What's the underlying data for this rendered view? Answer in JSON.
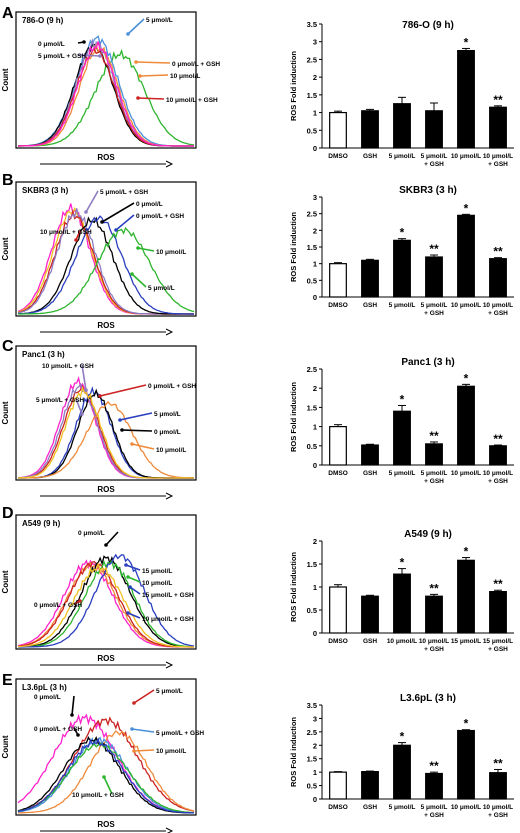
{
  "panels": [
    {
      "letter": "A",
      "flow": {
        "title": "786-O (9 h)",
        "xlabel": "ROS",
        "ylabel": "Count",
        "labels": [
          {
            "text": "5 μmol/L",
            "color": "#4a90d9"
          },
          {
            "text": "0 μmol/L",
            "color": "#000000"
          },
          {
            "text": "5 μmol/L + GSH",
            "color": "#8e7cc3"
          },
          {
            "text": "0 μmol/L + GSH",
            "color": "#f08a3a"
          },
          {
            "text": "10 μmol/L",
            "color": "#f08a3a"
          },
          {
            "text": "10 μmol/L + GSH",
            "color": "#cc2222"
          }
        ]
      },
      "bar": {
        "title": "786-O (9 h)",
        "ylabel": "ROS Fold induction",
        "categories": [
          [
            "DMSO"
          ],
          [
            "GSH"
          ],
          [
            "5 μmol/L"
          ],
          [
            "5 μmol/L",
            "+ GSH"
          ],
          [
            "10 μmol/L"
          ],
          [
            "10 μmol/L",
            "+ GSH"
          ]
        ],
        "values": [
          1.0,
          1.05,
          1.25,
          1.05,
          2.75,
          1.15
        ],
        "errors": [
          0.04,
          0.04,
          0.18,
          0.22,
          0.06,
          0.04
        ],
        "ylim": [
          0,
          3.5
        ],
        "yticks": [
          "0",
          "0.5",
          "1",
          "1.5",
          "2",
          "2.5",
          "3",
          "3.5"
        ],
        "marks": [
          "",
          "",
          "",
          "",
          "*",
          "**"
        ]
      }
    },
    {
      "letter": "B",
      "flow": {
        "title": "SKBR3 (3 h)",
        "xlabel": "ROS",
        "ylabel": "Count",
        "labels": [
          {
            "text": "5 μmol/L + GSH",
            "color": "#8e7cc3"
          },
          {
            "text": "0 μmol/L",
            "color": "#000000"
          },
          {
            "text": "0 μmol/L + GSH",
            "color": "#2a3fbf"
          },
          {
            "text": "10 μmol/L + GSH",
            "color": "#cc2222"
          },
          {
            "text": "10 μmol/L",
            "color": "#2db52d"
          },
          {
            "text": "5 μmol/L",
            "color": "#2db52d"
          }
        ]
      },
      "bar": {
        "title": "SKBR3 (3 h)",
        "ylabel": "ROS Fold induction",
        "categories": [
          [
            "DMSO"
          ],
          [
            "GSH"
          ],
          [
            "5 μmol/L"
          ],
          [
            "5 μmol/L",
            "+ GSH"
          ],
          [
            "10 μmol/L"
          ],
          [
            "10 μmol/L",
            "+ GSH"
          ]
        ],
        "values": [
          1.0,
          1.1,
          1.7,
          1.2,
          2.45,
          1.15
        ],
        "errors": [
          0.03,
          0.03,
          0.05,
          0.06,
          0.03,
          0.03
        ],
        "ylim": [
          0,
          3
        ],
        "yticks": [
          "0",
          "0.5",
          "1",
          "1.5",
          "2",
          "2.5",
          "3"
        ],
        "marks": [
          "",
          "",
          "*",
          "**",
          "*",
          "**"
        ]
      }
    },
    {
      "letter": "C",
      "flow": {
        "title": "Panc1 (3 h)",
        "xlabel": "ROS",
        "ylabel": "Count",
        "labels": [
          {
            "text": "10 μmol/L + GSH",
            "color": "#8e7cc3"
          },
          {
            "text": "0 μmol/L + GSH",
            "color": "#cc2222"
          },
          {
            "text": "5 μmol/L + GSH",
            "color": "#8e7cc3"
          },
          {
            "text": "5 μmol/L",
            "color": "#2a3fbf"
          },
          {
            "text": "0 μmol/L",
            "color": "#000000"
          },
          {
            "text": "10 μmol/L",
            "color": "#f08a3a"
          }
        ]
      },
      "bar": {
        "title": "Panc1 (3 h)",
        "ylabel": "ROS Fold induction",
        "categories": [
          [
            "DMSO"
          ],
          [
            "GSH"
          ],
          [
            "5 μmol/L"
          ],
          [
            "5 μmol/L",
            "+ GSH"
          ],
          [
            "10 μmol/L"
          ],
          [
            "10 μmol/L",
            "+ GSH"
          ]
        ],
        "values": [
          1.0,
          0.52,
          1.4,
          0.55,
          2.05,
          0.5
        ],
        "errors": [
          0.05,
          0.02,
          0.15,
          0.05,
          0.05,
          0.02
        ],
        "ylim": [
          0,
          2.5
        ],
        "yticks": [
          "0",
          "0.5",
          "1",
          "1.5",
          "2",
          "2.5"
        ],
        "marks": [
          "",
          "",
          "*",
          "**",
          "*",
          "**"
        ]
      }
    },
    {
      "letter": "D",
      "flow": {
        "title": "A549 (9 h)",
        "xlabel": "ROS",
        "ylabel": "Count",
        "labels": [
          {
            "text": "0 μmol/L",
            "color": "#000000"
          },
          {
            "text": "15 μmol/L",
            "color": "#2a3fbf"
          },
          {
            "text": "10 μmol/L",
            "color": "#2db52d"
          },
          {
            "text": "15 μmol/L + GSH",
            "color": "#2a3fbf"
          },
          {
            "text": "0 μmol/L + GSH",
            "color": "#cc2222"
          },
          {
            "text": "10 μmol/L + GSH",
            "color": "#2a3fbf"
          }
        ]
      },
      "bar": {
        "title": "A549 (9 h)",
        "ylabel": "ROS Fold induction",
        "categories": [
          [
            "DMSO"
          ],
          [
            "GSH"
          ],
          [
            "10 μmol/L"
          ],
          [
            "10 μmol/L",
            "+ GSH"
          ],
          [
            "15 μmol/L"
          ],
          [
            "15 μmol/L",
            "+ GSH"
          ]
        ],
        "values": [
          1.0,
          0.8,
          1.28,
          0.8,
          1.58,
          0.9
        ],
        "errors": [
          0.05,
          0.02,
          0.12,
          0.04,
          0.06,
          0.03
        ],
        "ylim": [
          0,
          2
        ],
        "yticks": [
          "0",
          "0.5",
          "1",
          "1.5",
          "2"
        ],
        "marks": [
          "",
          "",
          "*",
          "**",
          "*",
          "**"
        ]
      }
    },
    {
      "letter": "E",
      "flow": {
        "title": "L3.6pL (3 h)",
        "xlabel": "ROS",
        "ylabel": "Count",
        "labels": [
          {
            "text": "0 μmol/L",
            "color": "#000000"
          },
          {
            "text": "5 μmol/L",
            "color": "#cc2222"
          },
          {
            "text": "0 μmol/L + GSH",
            "color": "#000000"
          },
          {
            "text": "5 μmol/L + GSH",
            "color": "#4a90d9"
          },
          {
            "text": "10 μmol/L",
            "color": "#f08a3a"
          },
          {
            "text": "10 μmol/L + GSH",
            "color": "#2db52d"
          }
        ]
      },
      "bar": {
        "title": "L3.6pL (3 h)",
        "ylabel": "ROS Fold induction",
        "categories": [
          [
            "DMSO"
          ],
          [
            "GSH"
          ],
          [
            "5 μmol/L"
          ],
          [
            "5 μmol/L",
            "+ GSH"
          ],
          [
            "10 μmol/L"
          ],
          [
            "10 μmol/L",
            "+ GSH"
          ]
        ],
        "values": [
          1.0,
          1.02,
          2.0,
          0.95,
          2.55,
          0.98
        ],
        "errors": [
          0.02,
          0.02,
          0.1,
          0.05,
          0.03,
          0.12
        ],
        "ylim": [
          0,
          3.5
        ],
        "yticks": [
          "0",
          "0.5",
          "1",
          "1.5",
          "2",
          "2.5",
          "3",
          "3.5"
        ],
        "marks": [
          "",
          "",
          "*",
          "**",
          "*",
          "**"
        ]
      }
    }
  ],
  "chart_data": [
    {
      "type": "bar",
      "title": "786-O (9 h)",
      "ylabel": "ROS Fold induction",
      "categories": [
        "DMSO",
        "GSH",
        "5 μmol/L",
        "5 μmol/L + GSH",
        "10 μmol/L",
        "10 μmol/L + GSH"
      ],
      "values": [
        1.0,
        1.05,
        1.25,
        1.05,
        2.75,
        1.15
      ],
      "ylim": [
        0,
        3.5
      ]
    },
    {
      "type": "bar",
      "title": "SKBR3 (3 h)",
      "ylabel": "ROS Fold induction",
      "categories": [
        "DMSO",
        "GSH",
        "5 μmol/L",
        "5 μmol/L + GSH",
        "10 μmol/L",
        "10 μmol/L + GSH"
      ],
      "values": [
        1.0,
        1.1,
        1.7,
        1.2,
        2.45,
        1.15
      ],
      "ylim": [
        0,
        3
      ]
    },
    {
      "type": "bar",
      "title": "Panc1 (3 h)",
      "ylabel": "ROS Fold induction",
      "categories": [
        "DMSO",
        "GSH",
        "5 μmol/L",
        "5 μmol/L + GSH",
        "10 μmol/L",
        "10 μmol/L + GSH"
      ],
      "values": [
        1.0,
        0.52,
        1.4,
        0.55,
        2.05,
        0.5
      ],
      "ylim": [
        0,
        2.5
      ]
    },
    {
      "type": "bar",
      "title": "A549 (9 h)",
      "ylabel": "ROS Fold induction",
      "categories": [
        "DMSO",
        "GSH",
        "10 μmol/L",
        "10 μmol/L + GSH",
        "15 μmol/L",
        "15 μmol/L + GSH"
      ],
      "values": [
        1.0,
        0.8,
        1.28,
        0.8,
        1.58,
        0.9
      ],
      "ylim": [
        0,
        2
      ]
    },
    {
      "type": "bar",
      "title": "L3.6pL (3 h)",
      "ylabel": "ROS Fold induction",
      "categories": [
        "DMSO",
        "GSH",
        "5 μmol/L",
        "5 μmol/L + GSH",
        "10 μmol/L",
        "10 μmol/L + GSH"
      ],
      "values": [
        1.0,
        1.02,
        2.0,
        0.95,
        2.55,
        0.98
      ],
      "ylim": [
        0,
        3.5
      ]
    }
  ]
}
